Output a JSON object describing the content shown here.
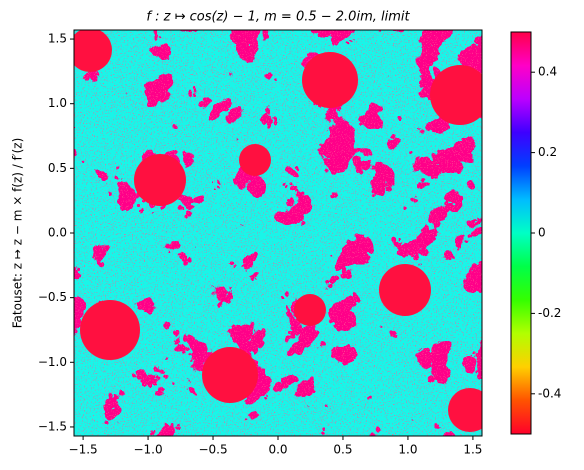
{
  "chart_data": {
    "type": "image",
    "title": "f : z ↦ cos(z) − 1, m = 0.5 − 2.0im, limit",
    "y_label": "Fatouset: z ↦ z − m × f(z) / f′(z)",
    "xlim": [
      -1.57,
      1.57
    ],
    "ylim": [
      -1.57,
      1.57
    ],
    "xticks": [
      {
        "value": -1.5,
        "label": "−1.5"
      },
      {
        "value": -1.0,
        "label": "−1.0"
      },
      {
        "value": -0.5,
        "label": "−0.5"
      },
      {
        "value": 0,
        "label": "0.0"
      },
      0.5,
      {
        "value": 1.0,
        "label": "1.0"
      },
      1.5
    ],
    "yticks": [
      {
        "value": -1.5,
        "label": "−1.5"
      },
      {
        "value": -1.0,
        "label": "−1.0"
      },
      {
        "value": -0.5,
        "label": "−0.5"
      },
      {
        "value": 0,
        "label": "0.0"
      },
      0.5,
      {
        "value": 1.0,
        "label": "1.0"
      },
      1.5
    ],
    "colormap": "hsv",
    "clim": [
      -0.5,
      0.5
    ],
    "cticks": [
      -0.4,
      -0.2,
      0,
      0.2,
      0.4
    ]
  }
}
